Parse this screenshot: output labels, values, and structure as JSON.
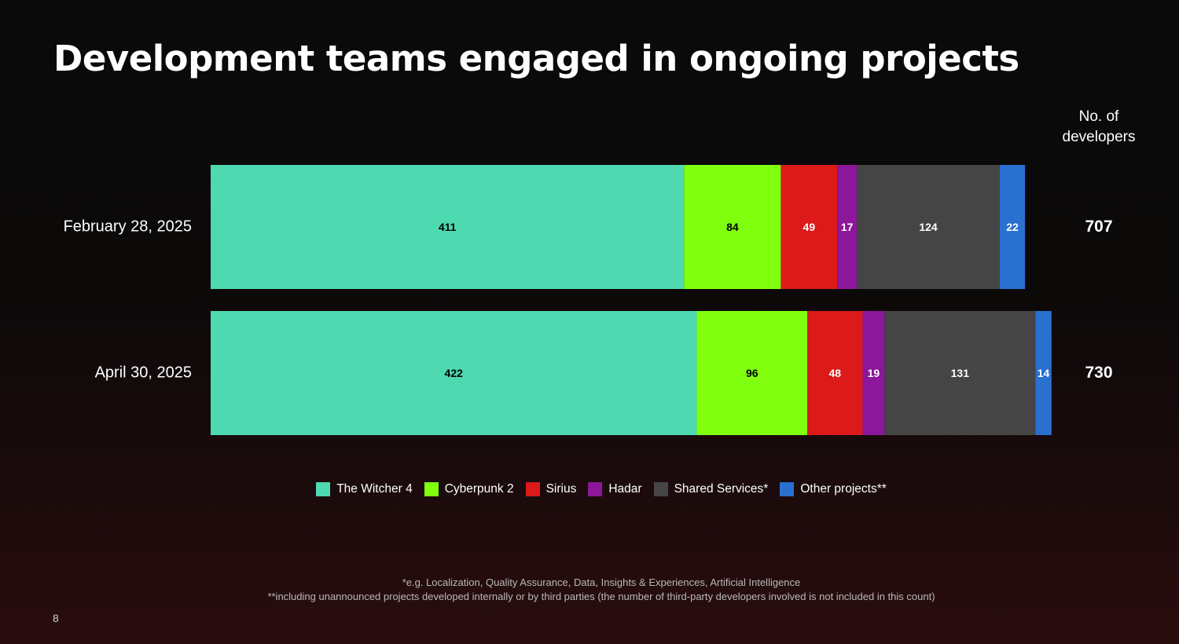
{
  "title": "Development teams engaged in ongoing projects",
  "total_header": [
    "No. of",
    "developers"
  ],
  "footnotes": [
    "*e.g. Localization, Quality Assurance, Data, Insights & Experiences, Artificial Intelligence",
    "**including unannounced projects developed internally or by third parties (the number of third-party developers involved is not included in this count)"
  ],
  "page_number": "8",
  "chart_data": {
    "type": "bar",
    "orientation": "horizontal",
    "stacked": true,
    "categories": [
      "February 28, 2025",
      "April 30, 2025"
    ],
    "series": [
      {
        "name": "The Witcher 4",
        "color": "#4fd9b0",
        "label_color": "#000000",
        "values": [
          411,
          422
        ]
      },
      {
        "name": "Cyberpunk 2",
        "color": "#80ff0f",
        "label_color": "#000000",
        "values": [
          84,
          96
        ]
      },
      {
        "name": "Sirius",
        "color": "#db1a19",
        "label_color": "#ffffff",
        "values": [
          49,
          48
        ]
      },
      {
        "name": "Hadar",
        "color": "#8c179b",
        "label_color": "#ffffff",
        "values": [
          17,
          19
        ]
      },
      {
        "name": "Shared Services*",
        "color": "#454545",
        "label_color": "#ffffff",
        "values": [
          124,
          131
        ]
      },
      {
        "name": "Other projects**",
        "color": "#2970d0",
        "label_color": "#ffffff",
        "values": [
          22,
          14
        ]
      }
    ],
    "totals": [
      707,
      730
    ],
    "legend_position": "bottom",
    "grid": false
  }
}
